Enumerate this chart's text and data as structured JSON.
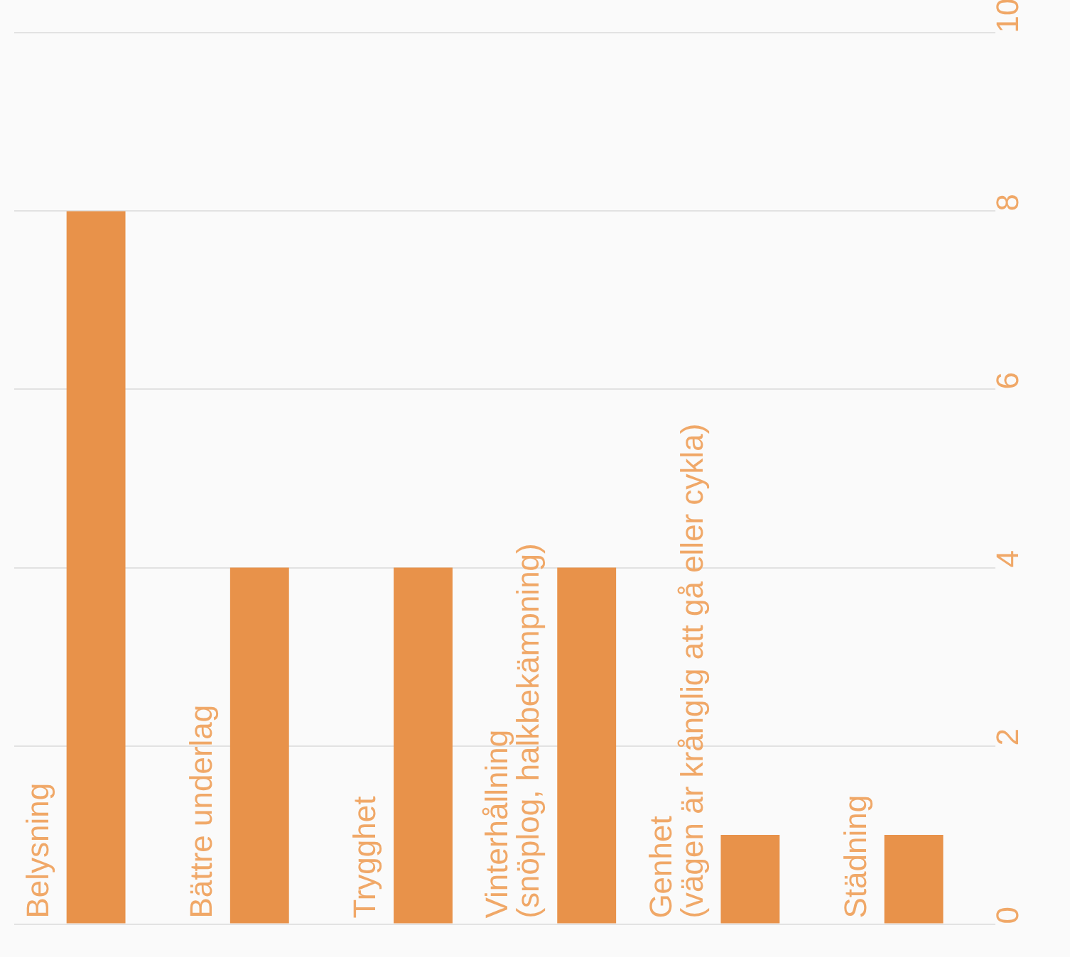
{
  "chart_data": {
    "type": "bar",
    "categories": [
      "Belysning",
      "Bättre underlag",
      "Trygghet",
      "Vinterhållning\n(snöplog, halkbekämpning)",
      "Genhet\n(vägen är krånglig att gå eller cykla)",
      "Städning"
    ],
    "values": [
      8,
      4,
      4,
      4,
      1,
      1
    ],
    "color": "#e8924a",
    "ylim": [
      0,
      10
    ],
    "yticks": [
      0,
      2,
      4,
      6,
      8,
      10
    ],
    "grid": "y",
    "legend": false
  }
}
